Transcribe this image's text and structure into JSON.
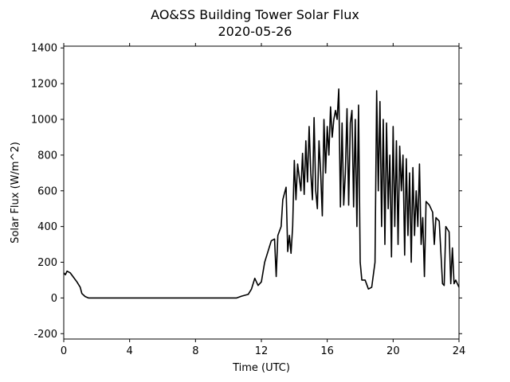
{
  "chart_data": {
    "type": "line",
    "title": "AO&SS Building Tower Solar Flux",
    "subtitle": "2020-05-26",
    "x_label": "Time (UTC)",
    "y_label": "Solar Flux (W/m^2)",
    "xlim": [
      0,
      24
    ],
    "xticks": [
      0,
      4,
      8,
      12,
      16,
      20,
      24
    ],
    "ylim": [
      -230,
      1410
    ],
    "yticks": [
      -200,
      0,
      200,
      400,
      600,
      800,
      1000,
      1200,
      1400
    ],
    "series": [
      {
        "name": "Solar Flux",
        "color": "#000000",
        "x": [
          0,
          0.1,
          0.2,
          0.4,
          0.6,
          0.8,
          1.0,
          1.1,
          1.3,
          1.5,
          10.5,
          10.8,
          11.2,
          11.4,
          11.6,
          11.8,
          12.0,
          12.2,
          12.4,
          12.6,
          12.8,
          12.9,
          13.0,
          13.2,
          13.3,
          13.5,
          13.6,
          13.7,
          13.8,
          13.9,
          14.0,
          14.1,
          14.2,
          14.4,
          14.5,
          14.6,
          14.7,
          14.8,
          14.9,
          15.0,
          15.1,
          15.2,
          15.3,
          15.4,
          15.5,
          15.6,
          15.7,
          15.8,
          15.9,
          16.0,
          16.1,
          16.2,
          16.3,
          16.4,
          16.5,
          16.6,
          16.7,
          16.8,
          16.9,
          17.0,
          17.1,
          17.2,
          17.3,
          17.4,
          17.5,
          17.6,
          17.7,
          17.8,
          17.9,
          18.0,
          18.1,
          18.3,
          18.5,
          18.7,
          18.9,
          19.0,
          19.1,
          19.2,
          19.3,
          19.4,
          19.5,
          19.6,
          19.7,
          19.8,
          19.9,
          20.0,
          20.1,
          20.2,
          20.3,
          20.4,
          20.5,
          20.6,
          20.7,
          20.8,
          20.9,
          21.0,
          21.1,
          21.2,
          21.3,
          21.4,
          21.5,
          21.6,
          21.7,
          21.8,
          21.9,
          22.0,
          22.2,
          22.4,
          22.5,
          22.6,
          22.8,
          23.0,
          23.1,
          23.2,
          23.4,
          23.5,
          23.6,
          23.7,
          23.8,
          24.0
        ],
        "values": [
          140,
          130,
          150,
          140,
          115,
          90,
          60,
          25,
          8,
          0,
          0,
          10,
          20,
          50,
          110,
          70,
          90,
          200,
          260,
          320,
          330,
          120,
          350,
          400,
          550,
          620,
          260,
          350,
          250,
          400,
          770,
          550,
          750,
          600,
          810,
          580,
          880,
          650,
          960,
          700,
          550,
          1010,
          600,
          500,
          880,
          700,
          460,
          1000,
          700,
          960,
          800,
          1070,
          900,
          1000,
          1050,
          1000,
          1170,
          510,
          980,
          520,
          700,
          1060,
          520,
          980,
          1050,
          510,
          1000,
          400,
          1080,
          200,
          100,
          100,
          50,
          60,
          200,
          1160,
          600,
          1100,
          400,
          1000,
          300,
          980,
          500,
          800,
          230,
          960,
          400,
          880,
          300,
          850,
          600,
          800,
          240,
          780,
          350,
          700,
          200,
          730,
          350,
          600,
          400,
          750,
          300,
          450,
          120,
          540,
          520,
          480,
          300,
          450,
          430,
          80,
          70,
          400,
          370,
          80,
          280,
          80,
          100,
          60
        ]
      }
    ]
  }
}
